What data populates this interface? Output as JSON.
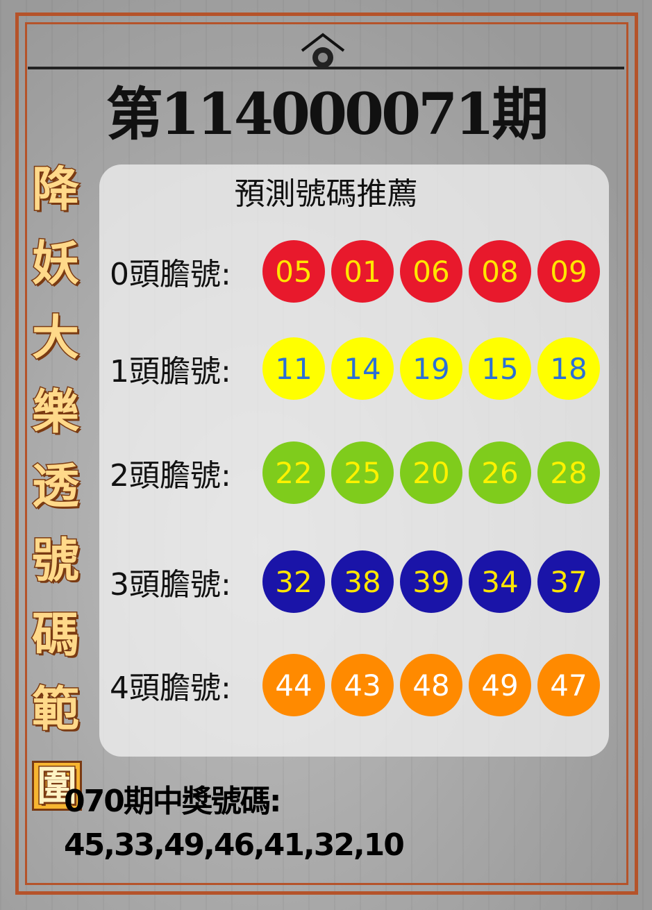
{
  "title": "第114000071期",
  "subtitle": "預測號碼推薦",
  "side_title": [
    "降",
    "妖",
    "大",
    "樂",
    "透",
    "號",
    "碼",
    "範",
    "圍"
  ],
  "rows": [
    {
      "label": "0頭膽號:",
      "numbers": [
        "05",
        "01",
        "06",
        "08",
        "09"
      ],
      "ball_color": "#e8192c",
      "text_color": "#ffe600"
    },
    {
      "label": "1頭膽號:",
      "numbers": [
        "11",
        "14",
        "19",
        "15",
        "18"
      ],
      "ball_color": "#ffff00",
      "text_color": "#2b6fd6"
    },
    {
      "label": "2頭膽號:",
      "numbers": [
        "22",
        "25",
        "20",
        "26",
        "28"
      ],
      "ball_color": "#7fcc1c",
      "text_color": "#fff200"
    },
    {
      "label": "3頭膽號:",
      "numbers": [
        "32",
        "38",
        "39",
        "34",
        "37"
      ],
      "ball_color": "#1a14a8",
      "text_color": "#ffe600"
    },
    {
      "label": "4頭膽號:",
      "numbers": [
        "44",
        "43",
        "48",
        "49",
        "47"
      ],
      "ball_color": "#ff8a00",
      "text_color": "#ffffff"
    }
  ],
  "previous": {
    "label": "070期中獎號碼:",
    "numbers": "45,33,49,46,41,32,10"
  },
  "colors": {
    "frame": "#b5532a",
    "background": "#a6a6a6"
  }
}
